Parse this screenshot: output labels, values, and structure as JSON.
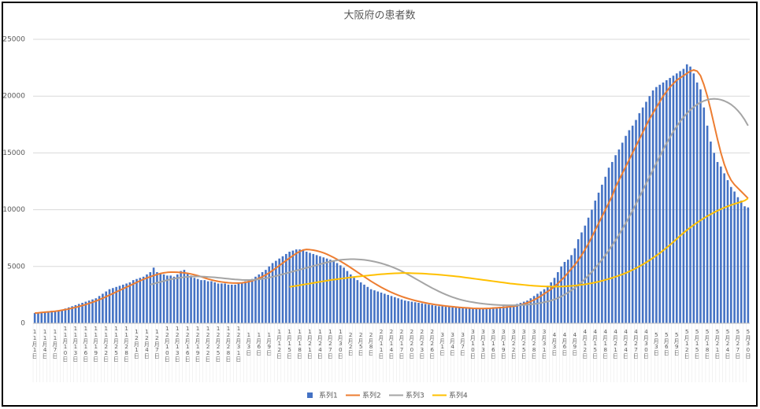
{
  "chart_data": {
    "type": "combo",
    "title": "大阪府の患者数",
    "categories": [
      "11月1日",
      null,
      null,
      "11月4日",
      null,
      null,
      "11月7日",
      null,
      null,
      "11月10日",
      null,
      null,
      "11月13日",
      null,
      null,
      "11月16日",
      null,
      null,
      "11月19日",
      null,
      null,
      "11月22日",
      null,
      null,
      "11月25日",
      null,
      null,
      "11月28日",
      null,
      null,
      "12月1日",
      null,
      null,
      "12月4日",
      null,
      null,
      "12月7日",
      null,
      null,
      "12月10日",
      null,
      null,
      "12月13日",
      null,
      null,
      "12月16日",
      null,
      null,
      "12月19日",
      null,
      null,
      "12月22日",
      null,
      null,
      "12月25日",
      null,
      null,
      "12月28日",
      null,
      null,
      "12月31日",
      null,
      null,
      "1月3日",
      null,
      null,
      "1月6日",
      null,
      null,
      "1月9日",
      null,
      null,
      "1月12日",
      null,
      null,
      "1月15日",
      null,
      null,
      "1月18日",
      null,
      null,
      "1月21日",
      null,
      null,
      "1月24日",
      null,
      null,
      "1月27日",
      null,
      null,
      "1月30日",
      null,
      null,
      "2月2日",
      null,
      null,
      "2月5日",
      null,
      null,
      "2月8日",
      null,
      null,
      "2月11日",
      null,
      null,
      "2月14日",
      null,
      null,
      "2月17日",
      null,
      null,
      "2月20日",
      null,
      null,
      "2月23日",
      null,
      null,
      "2月26日",
      null,
      null,
      "3月1日",
      null,
      null,
      "3月4日",
      null,
      null,
      "3月7日",
      null,
      null,
      "3月10日",
      null,
      null,
      "3月13日",
      null,
      null,
      "3月16日",
      null,
      null,
      "3月19日",
      null,
      null,
      "3月22日",
      null,
      null,
      "3月25日",
      null,
      null,
      "3月28日",
      null,
      null,
      "3月31日",
      null,
      null,
      "4月3日",
      null,
      null,
      "4月6日",
      null,
      null,
      "4月9日",
      null,
      null,
      "4月12日",
      null,
      null,
      "4月15日",
      null,
      null,
      "4月18日",
      null,
      null,
      "4月21日",
      null,
      null,
      "4月24日",
      null,
      null,
      "4月27日",
      null,
      null,
      "4月30日",
      null,
      null,
      "5月3日",
      null,
      null,
      "5月6日",
      null,
      null,
      "5月9日",
      null,
      null,
      "5月12日",
      null,
      null,
      "5月15日",
      null,
      null,
      "5月18日",
      null,
      null,
      "5月21日",
      null,
      null,
      "5月24日",
      null,
      null,
      "5月27日",
      null,
      null,
      "5月30日"
    ],
    "series": [
      {
        "name": "系列1",
        "type": "bar",
        "color": "#4472c4",
        "values": [
          900,
          950,
          1000,
          1000,
          1050,
          1100,
          1100,
          1150,
          1200,
          1300,
          1400,
          1500,
          1600,
          1700,
          1800,
          1900,
          2000,
          2100,
          2200,
          2400,
          2600,
          2800,
          3000,
          3100,
          3200,
          3300,
          3400,
          3500,
          3600,
          3800,
          3900,
          4000,
          4100,
          4300,
          4500,
          4900,
          4500,
          4400,
          4300,
          4200,
          4200,
          4100,
          4300,
          4600,
          4700,
          4400,
          4200,
          4000,
          3900,
          3800,
          3800,
          3700,
          3700,
          3600,
          3500,
          3500,
          3500,
          3400,
          3400,
          3400,
          3500,
          3600,
          3700,
          3800,
          3900,
          4100,
          4300,
          4500,
          4700,
          5000,
          5300,
          5500,
          5700,
          5900,
          6100,
          6300,
          6400,
          6500,
          6500,
          6400,
          6300,
          6200,
          6100,
          6000,
          5900,
          5800,
          5700,
          5600,
          5500,
          5300,
          5100,
          4900,
          4600,
          4300,
          4000,
          3800,
          3600,
          3400,
          3200,
          3000,
          2900,
          2800,
          2700,
          2600,
          2500,
          2400,
          2300,
          2200,
          2100,
          2000,
          1950,
          1900,
          1850,
          1800,
          1750,
          1700,
          1650,
          1600,
          1550,
          1500,
          1500,
          1450,
          1450,
          1400,
          1400,
          1400,
          1350,
          1350,
          1350,
          1300,
          1300,
          1300,
          1300,
          1350,
          1350,
          1400,
          1400,
          1450,
          1500,
          1500,
          1550,
          1600,
          1700,
          1800,
          1900,
          2000,
          2200,
          2400,
          2600,
          2800,
          3000,
          3300,
          3600,
          4000,
          4500,
          5000,
          5400,
          5600,
          6000,
          6600,
          7400,
          8000,
          8600,
          9300,
          10000,
          10800,
          11500,
          12200,
          12900,
          13700,
          14200,
          14800,
          15300,
          15900,
          16500,
          17000,
          17400,
          17900,
          18500,
          19000,
          19500,
          20000,
          20500,
          20800,
          21000,
          21200,
          21400,
          21600,
          21800,
          22000,
          22200,
          22400,
          22800,
          22600,
          22000,
          21200,
          20600,
          19000,
          17400,
          16000,
          15000,
          14200,
          13800,
          13200,
          12600,
          12000,
          11600,
          11100,
          10800,
          10300,
          10200
        ]
      },
      {
        "name": "系列2",
        "type": "line",
        "color": "#ed7d31",
        "values": [
          900,
          920,
          950,
          980,
          1000,
          1030,
          1060,
          1100,
          1150,
          1200,
          1260,
          1330,
          1400,
          1480,
          1560,
          1650,
          1750,
          1850,
          1960,
          2080,
          2200,
          2340,
          2480,
          2620,
          2760,
          2900,
          3040,
          3180,
          3320,
          3460,
          3600,
          3740,
          3870,
          3990,
          4100,
          4200,
          4300,
          4380,
          4440,
          4480,
          4500,
          4500,
          4490,
          4470,
          4440,
          4400,
          4340,
          4270,
          4190,
          4100,
          4000,
          3900,
          3820,
          3750,
          3690,
          3640,
          3600,
          3570,
          3550,
          3540,
          3540,
          3560,
          3600,
          3660,
          3740,
          3840,
          3960,
          4100,
          4260,
          4440,
          4640,
          4860,
          5080,
          5300,
          5520,
          5740,
          5950,
          6150,
          6320,
          6450,
          6500,
          6480,
          6440,
          6380,
          6300,
          6200,
          6080,
          5940,
          5790,
          5630,
          5460,
          5280,
          5100,
          4900,
          4700,
          4500,
          4300,
          4100,
          3900,
          3700,
          3520,
          3340,
          3170,
          3010,
          2860,
          2720,
          2590,
          2470,
          2360,
          2260,
          2170,
          2080,
          2000,
          1930,
          1860,
          1800,
          1740,
          1690,
          1640,
          1600,
          1560,
          1520,
          1490,
          1460,
          1430,
          1400,
          1380,
          1360,
          1340,
          1320,
          1310,
          1300,
          1300,
          1310,
          1320,
          1340,
          1360,
          1380,
          1400,
          1430,
          1460,
          1500,
          1550,
          1620,
          1700,
          1800,
          1920,
          2060,
          2220,
          2400,
          2600,
          2800,
          3000,
          3250,
          3500,
          3800,
          4100,
          4450,
          4800,
          5150,
          5550,
          6000,
          6500,
          7000,
          7600,
          8200,
          8800,
          9400,
          10000,
          10600,
          11200,
          12000,
          12600,
          13200,
          13800,
          14400,
          15000,
          15600,
          16200,
          16800,
          17400,
          18000,
          18500,
          19000,
          19500,
          20000,
          20400,
          20800,
          21100,
          21400,
          21600,
          21800,
          22000,
          22200,
          22300,
          22200,
          21800,
          21000,
          20000,
          18800,
          17500,
          16200,
          15000,
          14000,
          13200,
          12600,
          12200,
          11900,
          11600,
          11300,
          11000
        ]
      },
      {
        "name": "系列3",
        "type": "line",
        "color": "#a5a5a5",
        "values": [
          null,
          null,
          null,
          null,
          null,
          null,
          null,
          null,
          null,
          null,
          null,
          null,
          null,
          null,
          null,
          null,
          null,
          null,
          null,
          null,
          null,
          null,
          null,
          null,
          null,
          null,
          null,
          null,
          null,
          null,
          null,
          null,
          null,
          null,
          3400,
          3480,
          3560,
          3640,
          3720,
          3800,
          3870,
          3930,
          3980,
          4020,
          4060,
          4090,
          4110,
          4120,
          4120,
          4110,
          4100,
          4080,
          4060,
          4040,
          4010,
          3980,
          3950,
          3920,
          3890,
          3860,
          3840,
          3820,
          3810,
          3810,
          3820,
          3840,
          3870,
          3910,
          3960,
          4020,
          4090,
          4160,
          4240,
          4320,
          4400,
          4480,
          4560,
          4640,
          4720,
          4800,
          4880,
          4960,
          5040,
          5120,
          5200,
          5280,
          5360,
          5430,
          5490,
          5540,
          5580,
          5610,
          5630,
          5640,
          5640,
          5630,
          5610,
          5580,
          5540,
          5490,
          5430,
          5360,
          5280,
          5190,
          5090,
          4980,
          4860,
          4730,
          4590,
          4440,
          4280,
          4110,
          3940,
          3770,
          3600,
          3430,
          3260,
          3100,
          2950,
          2800,
          2660,
          2530,
          2410,
          2300,
          2200,
          2110,
          2030,
          1960,
          1900,
          1850,
          1800,
          1760,
          1720,
          1690,
          1660,
          1640,
          1620,
          1600,
          1590,
          1580,
          1580,
          1580,
          1590,
          1600,
          1620,
          1640,
          1670,
          1700,
          1740,
          1790,
          1850,
          1920,
          2000,
          2100,
          2220,
          2360,
          2520,
          2700,
          2900,
          3120,
          3360,
          3620,
          3900,
          4200,
          4520,
          4860,
          5220,
          5600,
          6000,
          6420,
          6860,
          7320,
          7800,
          8300,
          8820,
          9360,
          9920,
          10500,
          11100,
          11700,
          12300,
          12900,
          13500,
          14100,
          14700,
          15280,
          15840,
          16380,
          16880,
          17340,
          17760,
          18140,
          18480,
          18780,
          19040,
          19260,
          19440,
          19580,
          19680,
          19740,
          19760,
          19740,
          19680,
          19580,
          19440,
          19260,
          19020,
          18720,
          18360,
          17920,
          17400
        ]
      },
      {
        "name": "系列4",
        "type": "line",
        "color": "#ffc000",
        "values": [
          null,
          null,
          null,
          null,
          null,
          null,
          null,
          null,
          null,
          null,
          null,
          null,
          null,
          null,
          null,
          null,
          null,
          null,
          null,
          null,
          null,
          null,
          null,
          null,
          null,
          null,
          null,
          null,
          null,
          null,
          null,
          null,
          null,
          null,
          null,
          null,
          null,
          null,
          null,
          null,
          null,
          null,
          null,
          null,
          null,
          null,
          null,
          null,
          null,
          null,
          null,
          null,
          null,
          null,
          null,
          null,
          null,
          null,
          null,
          null,
          null,
          null,
          null,
          null,
          null,
          null,
          null,
          null,
          null,
          null,
          null,
          null,
          null,
          null,
          null,
          3200,
          3250,
          3300,
          3350,
          3400,
          3450,
          3500,
          3550,
          3600,
          3650,
          3700,
          3750,
          3800,
          3840,
          3880,
          3920,
          3960,
          4000,
          4040,
          4080,
          4110,
          4140,
          4170,
          4200,
          4230,
          4260,
          4290,
          4320,
          4340,
          4360,
          4380,
          4400,
          4410,
          4420,
          4420,
          4420,
          4410,
          4400,
          4390,
          4380,
          4360,
          4340,
          4320,
          4300,
          4280,
          4250,
          4220,
          4190,
          4160,
          4130,
          4100,
          4060,
          4020,
          3980,
          3940,
          3900,
          3860,
          3820,
          3780,
          3740,
          3700,
          3660,
          3620,
          3580,
          3540,
          3500,
          3470,
          3440,
          3410,
          3380,
          3350,
          3320,
          3300,
          3280,
          3260,
          3250,
          3240,
          3230,
          3230,
          3230,
          3240,
          3250,
          3270,
          3290,
          3320,
          3350,
          3390,
          3430,
          3480,
          3530,
          3590,
          3660,
          3740,
          3820,
          3910,
          4000,
          4100,
          4200,
          4310,
          4430,
          4560,
          4700,
          4850,
          5010,
          5180,
          5360,
          5550,
          5750,
          5960,
          6180,
          6410,
          6650,
          6900,
          7160,
          7430,
          7700,
          7960,
          8200,
          8430,
          8650,
          8860,
          9060,
          9250,
          9430,
          9600,
          9760,
          9910,
          10050,
          10180,
          10300,
          10410,
          10510,
          10600,
          10700,
          10800,
          11000
        ]
      }
    ],
    "ylim": [
      0,
      25000
    ],
    "yticks": [
      0,
      5000,
      10000,
      15000,
      20000,
      25000
    ],
    "grid": true,
    "legend": "bottom"
  }
}
